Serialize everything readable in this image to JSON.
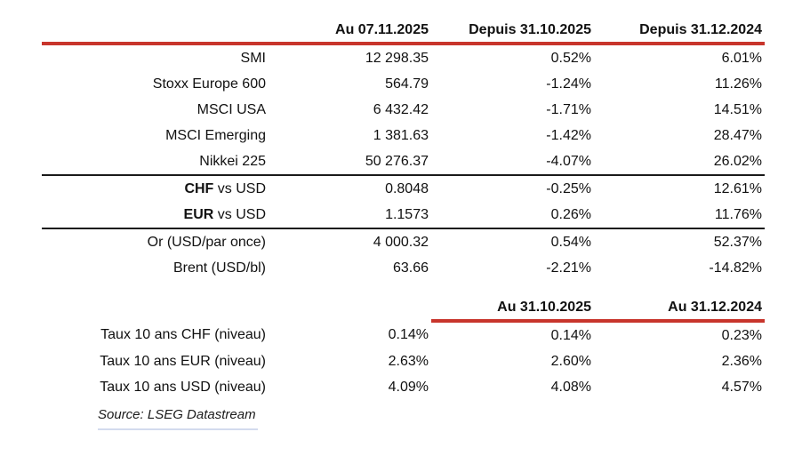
{
  "colors": {
    "red_line": "#c8352c",
    "footer_line": "#aebde0"
  },
  "market_table": {
    "headers": {
      "c1": "Au 07.11.2025",
      "c2": "Depuis 31.10.2025",
      "c3": "Depuis 31.12.2024"
    },
    "rows": [
      {
        "label_bold": "",
        "label": "SMI",
        "v1": "12 298.35",
        "v2": "0.52%",
        "v3": "6.01%"
      },
      {
        "label_bold": "",
        "label": "Stoxx Europe 600",
        "v1": "564.79",
        "v2": "-1.24%",
        "v3": "11.26%"
      },
      {
        "label_bold": "",
        "label": "MSCI USA",
        "v1": "6 432.42",
        "v2": "-1.71%",
        "v3": "14.51%"
      },
      {
        "label_bold": "",
        "label": "MSCI Emerging",
        "v1": "1 381.63",
        "v2": "-1.42%",
        "v3": "28.47%"
      },
      {
        "label_bold": "",
        "label": "Nikkei 225",
        "v1": "50 276.37",
        "v2": "-4.07%",
        "v3": "26.02%"
      },
      {
        "label_bold": "CHF",
        "label": " vs USD",
        "v1": "0.8048",
        "v2": "-0.25%",
        "v3": "12.61%"
      },
      {
        "label_bold": "EUR",
        "label": " vs USD",
        "v1": "1.1573",
        "v2": "0.26%",
        "v3": "11.76%"
      },
      {
        "label_bold": "",
        "label": "Or (USD/par once)",
        "v1": "4 000.32",
        "v2": "0.54%",
        "v3": "52.37%"
      },
      {
        "label_bold": "",
        "label": "Brent (USD/bl)",
        "v1": "63.66",
        "v2": "-2.21%",
        "v3": "-14.82%"
      }
    ]
  },
  "rates_table": {
    "headers": {
      "c2": "Au 31.10.2025",
      "c3": "Au 31.12.2024"
    },
    "rows": [
      {
        "label": "Taux 10 ans CHF (niveau)",
        "v1": "0.14%",
        "v2": "0.14%",
        "v3": "0.23%"
      },
      {
        "label": "Taux 10 ans EUR (niveau)",
        "v1": "2.63%",
        "v2": "2.60%",
        "v3": "2.36%"
      },
      {
        "label": "Taux 10 ans USD (niveau)",
        "v1": "4.09%",
        "v2": "4.08%",
        "v3": "4.57%"
      }
    ]
  },
  "footer": {
    "source": "Source: LSEG Datastream"
  },
  "chart_data": [
    {
      "type": "table",
      "title": "",
      "columns": [
        "",
        "Au 07.11.2025",
        "Depuis 31.10.2025",
        "Depuis 31.12.2024"
      ],
      "rows": [
        [
          "SMI",
          "12 298.35",
          "0.52%",
          "6.01%"
        ],
        [
          "Stoxx Europe 600",
          "564.79",
          "-1.24%",
          "11.26%"
        ],
        [
          "MSCI USA",
          "6 432.42",
          "-1.71%",
          "14.51%"
        ],
        [
          "MSCI Emerging",
          "1 381.63",
          "-1.42%",
          "28.47%"
        ],
        [
          "Nikkei 225",
          "50 276.37",
          "-4.07%",
          "26.02%"
        ],
        [
          "CHF vs USD",
          "0.8048",
          "-0.25%",
          "12.61%"
        ],
        [
          "EUR vs USD",
          "1.1573",
          "0.26%",
          "11.76%"
        ],
        [
          "Or (USD/par once)",
          "4 000.32",
          "0.54%",
          "52.37%"
        ],
        [
          "Brent (USD/bl)",
          "63.66",
          "-2.21%",
          "-14.82%"
        ]
      ],
      "group_separators_before_rows": [
        5,
        7
      ],
      "layout": "labels and values right-aligned, red rule under header"
    },
    {
      "type": "table",
      "title": "",
      "columns": [
        "",
        "",
        "Au 31.10.2025",
        "Au 31.12.2024"
      ],
      "rows": [
        [
          "Taux 10 ans CHF (niveau)",
          "0.14%",
          "0.14%",
          "0.23%"
        ],
        [
          "Taux 10 ans EUR (niveau)",
          "2.63%",
          "2.60%",
          "2.36%"
        ],
        [
          "Taux 10 ans USD (niveau)",
          "4.09%",
          "4.08%",
          "4.57%"
        ]
      ],
      "note": "red rule only under last two column headers",
      "source": "Source: LSEG Datastream"
    }
  ]
}
